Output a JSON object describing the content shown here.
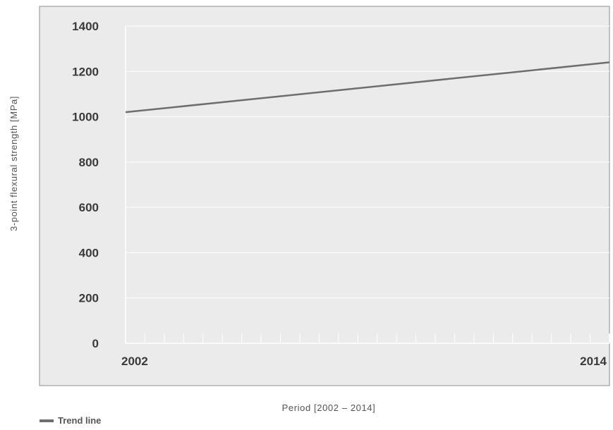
{
  "chart_data": {
    "type": "line",
    "ylabel": "3-point flexural strength [MPa]",
    "xlabel": "Period [2002 – 2014]",
    "xlim": [
      2002,
      2014
    ],
    "ylim": [
      0,
      1400
    ],
    "y_ticks": [
      0,
      200,
      400,
      600,
      800,
      1000,
      1200,
      1400
    ],
    "x_tick_labels": [
      "2002",
      "2014"
    ],
    "minor_x_ticks": 25,
    "grid": true,
    "legend_position": "bottom-left",
    "series": [
      {
        "name": "Trend line",
        "x": [
          2002,
          2014
        ],
        "y": [
          1020,
          1240
        ],
        "color": "#6e6e6e"
      }
    ],
    "colors": {
      "plot_background": "#ebebeb",
      "frame": "#8c8c8c",
      "gridline": "#ffffff"
    }
  }
}
